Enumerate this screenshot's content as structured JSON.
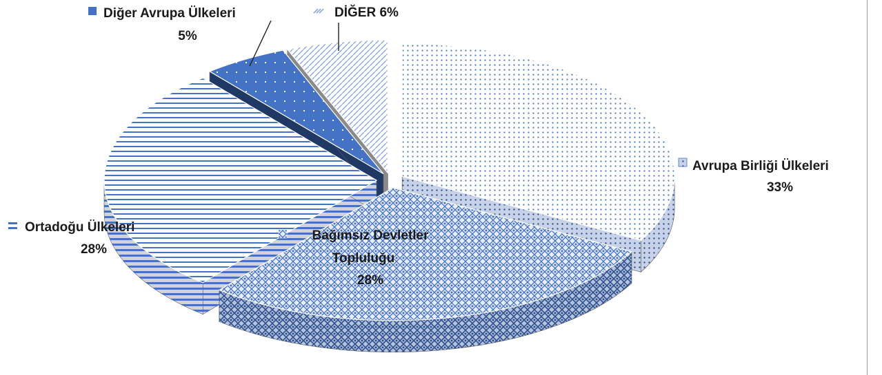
{
  "chart_data": {
    "type": "pie",
    "title": "",
    "style": "3d-exploded",
    "slices": [
      {
        "name": "Avrupa Birliği Ülkeleri",
        "value": 33,
        "value_label": "33%",
        "color": "#4472c4",
        "pattern": "dots",
        "icon": "dots-pattern-icon"
      },
      {
        "name": "Bağımsız Devletler Topluluğu",
        "value": 28,
        "value_label": "28%",
        "color": "#4472c4",
        "pattern": "diamond-grid",
        "icon": "diamond-pattern-icon"
      },
      {
        "name": "Ortadoğu Ülkeleri",
        "value": 28,
        "value_label": "28%",
        "color": "#4472c4",
        "pattern": "horizontal-lines",
        "icon": "lines-pattern-icon"
      },
      {
        "name": "Diğer Avrupa Ülkeleri",
        "value": 5,
        "value_label": "5%",
        "color": "#4472c4",
        "pattern": "solid",
        "icon": "solid-square-icon"
      },
      {
        "name": "DİĞER",
        "value": 6,
        "value_label": "6%",
        "color": "#8eaadb",
        "pattern": "diagonal-stripes",
        "icon": "stripes-pattern-icon"
      }
    ],
    "label_texts": {
      "ab_name": "Avrupa Birliği Ülkeleri",
      "ab_value": "33%",
      "bdt_line1": "Bağımsız Devletler",
      "bdt_line2": "Topluluğu",
      "bdt_value": "28%",
      "ort_name": "Ortadoğu Ülkeleri",
      "ort_value": "28%",
      "dav_name": "Diğer Avrupa Ülkeleri",
      "dav_value": "5%",
      "diger_label": "DİĞER 6%"
    }
  }
}
